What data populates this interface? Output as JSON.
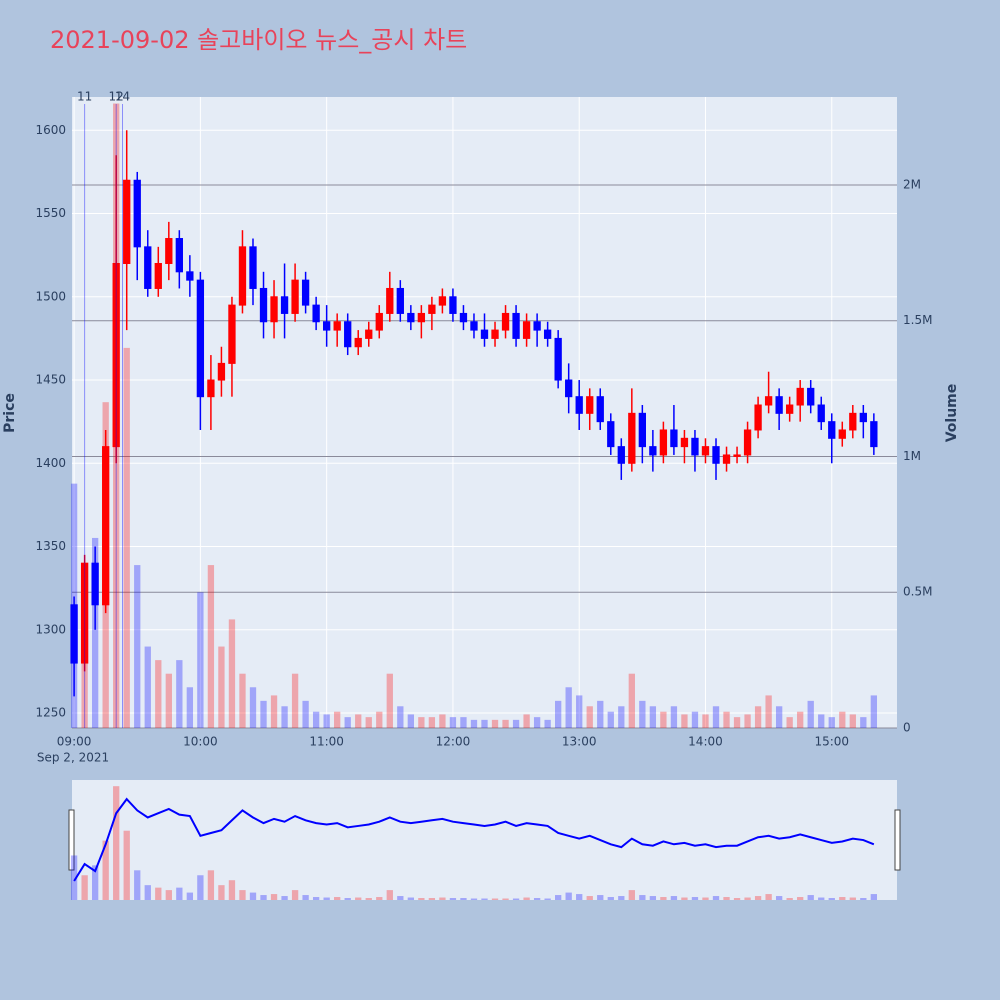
{
  "chart_data": {
    "type": "candlestick",
    "title": "2021-09-02 솔고바이오 뉴스_공시 차트",
    "y_label": "Price",
    "y2_label": "Volume",
    "x_date_label": "Sep 2, 2021",
    "increasing_color": "#ff0000",
    "decreasing_color": "#0000ff",
    "x": [
      "09:00",
      "09:05",
      "09:10",
      "09:15",
      "09:20",
      "09:25",
      "09:30",
      "09:35",
      "09:40",
      "09:45",
      "09:50",
      "09:55",
      "10:00",
      "10:05",
      "10:10",
      "10:15",
      "10:20",
      "10:25",
      "10:30",
      "10:35",
      "10:40",
      "10:45",
      "10:50",
      "10:55",
      "11:00",
      "11:05",
      "11:10",
      "11:15",
      "11:20",
      "11:25",
      "11:30",
      "11:35",
      "11:40",
      "11:45",
      "11:50",
      "11:55",
      "12:00",
      "12:05",
      "12:10",
      "12:15",
      "12:20",
      "12:25",
      "12:30",
      "12:35",
      "12:40",
      "12:45",
      "12:50",
      "12:55",
      "13:00",
      "13:05",
      "13:10",
      "13:15",
      "13:20",
      "13:25",
      "13:30",
      "13:35",
      "13:40",
      "13:45",
      "13:50",
      "13:55",
      "14:00",
      "14:05",
      "14:10",
      "14:15",
      "14:20",
      "14:25",
      "14:30",
      "14:35",
      "14:40",
      "14:45",
      "14:50",
      "14:55",
      "15:00",
      "15:05",
      "15:10",
      "15:15",
      "15:20"
    ],
    "open": [
      1315,
      1280,
      1340,
      1315,
      1410,
      1520,
      1570,
      1530,
      1505,
      1520,
      1535,
      1515,
      1510,
      1440,
      1450,
      1460,
      1495,
      1530,
      1505,
      1485,
      1500,
      1490,
      1510,
      1495,
      1485,
      1480,
      1485,
      1470,
      1475,
      1480,
      1490,
      1505,
      1490,
      1485,
      1490,
      1495,
      1500,
      1490,
      1485,
      1480,
      1475,
      1480,
      1490,
      1475,
      1485,
      1480,
      1475,
      1450,
      1440,
      1430,
      1440,
      1425,
      1410,
      1400,
      1430,
      1410,
      1405,
      1420,
      1410,
      1415,
      1405,
      1410,
      1400,
      1405,
      1405,
      1420,
      1435,
      1440,
      1430,
      1435,
      1445,
      1435,
      1425,
      1415,
      1420,
      1430,
      1425
    ],
    "high": [
      1320,
      1345,
      1350,
      1420,
      1585,
      1600,
      1575,
      1540,
      1530,
      1545,
      1540,
      1525,
      1515,
      1465,
      1470,
      1500,
      1540,
      1535,
      1515,
      1510,
      1520,
      1520,
      1515,
      1500,
      1495,
      1490,
      1490,
      1480,
      1485,
      1495,
      1515,
      1510,
      1495,
      1495,
      1500,
      1505,
      1505,
      1495,
      1490,
      1490,
      1485,
      1495,
      1495,
      1490,
      1490,
      1485,
      1480,
      1460,
      1450,
      1445,
      1445,
      1430,
      1415,
      1445,
      1435,
      1420,
      1425,
      1435,
      1420,
      1420,
      1415,
      1415,
      1410,
      1410,
      1425,
      1440,
      1455,
      1445,
      1440,
      1450,
      1450,
      1440,
      1430,
      1425,
      1435,
      1435,
      1430
    ],
    "low": [
      1260,
      1275,
      1300,
      1310,
      1400,
      1480,
      1510,
      1500,
      1500,
      1510,
      1505,
      1500,
      1420,
      1420,
      1440,
      1440,
      1490,
      1495,
      1475,
      1475,
      1475,
      1485,
      1490,
      1480,
      1470,
      1470,
      1465,
      1465,
      1470,
      1475,
      1485,
      1485,
      1480,
      1475,
      1480,
      1490,
      1485,
      1480,
      1475,
      1470,
      1470,
      1475,
      1470,
      1470,
      1470,
      1470,
      1445,
      1430,
      1420,
      1420,
      1420,
      1405,
      1390,
      1395,
      1400,
      1395,
      1400,
      1405,
      1400,
      1395,
      1400,
      1390,
      1395,
      1400,
      1400,
      1415,
      1430,
      1420,
      1425,
      1425,
      1430,
      1420,
      1400,
      1410,
      1415,
      1415,
      1405
    ],
    "close": [
      1280,
      1340,
      1315,
      1410,
      1520,
      1570,
      1530,
      1505,
      1520,
      1535,
      1515,
      1510,
      1440,
      1450,
      1460,
      1495,
      1530,
      1505,
      1485,
      1500,
      1490,
      1510,
      1495,
      1485,
      1480,
      1485,
      1470,
      1475,
      1480,
      1490,
      1505,
      1490,
      1485,
      1490,
      1495,
      1500,
      1490,
      1485,
      1480,
      1475,
      1480,
      1490,
      1475,
      1485,
      1480,
      1475,
      1450,
      1440,
      1430,
      1440,
      1425,
      1410,
      1400,
      1430,
      1410,
      1405,
      1420,
      1410,
      1415,
      1405,
      1410,
      1400,
      1405,
      1405,
      1420,
      1435,
      1440,
      1430,
      1435,
      1445,
      1435,
      1425,
      1415,
      1420,
      1430,
      1425,
      1410
    ],
    "volume": [
      900000,
      500000,
      700000,
      1200000,
      2300000,
      1400000,
      600000,
      300000,
      250000,
      200000,
      250000,
      150000,
      500000,
      600000,
      300000,
      400000,
      200000,
      150000,
      100000,
      120000,
      80000,
      200000,
      100000,
      60000,
      50000,
      60000,
      40000,
      50000,
      40000,
      60000,
      200000,
      80000,
      50000,
      40000,
      40000,
      50000,
      40000,
      40000,
      30000,
      30000,
      30000,
      30000,
      30000,
      50000,
      40000,
      30000,
      100000,
      150000,
      120000,
      80000,
      100000,
      60000,
      80000,
      200000,
      100000,
      80000,
      60000,
      80000,
      50000,
      60000,
      50000,
      80000,
      60000,
      40000,
      50000,
      80000,
      120000,
      80000,
      40000,
      60000,
      100000,
      50000,
      40000,
      60000,
      50000,
      40000,
      120000
    ],
    "xlim": [
      "08:59",
      "15:31"
    ],
    "xticks": [
      "09:00",
      "10:00",
      "11:00",
      "12:00",
      "13:00",
      "14:00",
      "15:00"
    ],
    "ylim": [
      1241,
      1620
    ],
    "yticks": [
      1250,
      1300,
      1350,
      1400,
      1450,
      1500,
      1550,
      1600
    ],
    "y2lim": [
      0,
      2324000
    ],
    "y2ticks": [
      0,
      {
        "value": 500000,
        "label": "0.5M"
      },
      {
        "value": 1000000,
        "label": "1M"
      },
      {
        "value": 1500000,
        "label": "1.5M"
      },
      {
        "value": 2000000,
        "label": "2M"
      }
    ],
    "annotations": [
      {
        "x": "09:05",
        "text": "11"
      },
      {
        "x": "09:20",
        "text": "12"
      },
      {
        "x": "09:23",
        "text": "14"
      }
    ],
    "grid": true
  }
}
